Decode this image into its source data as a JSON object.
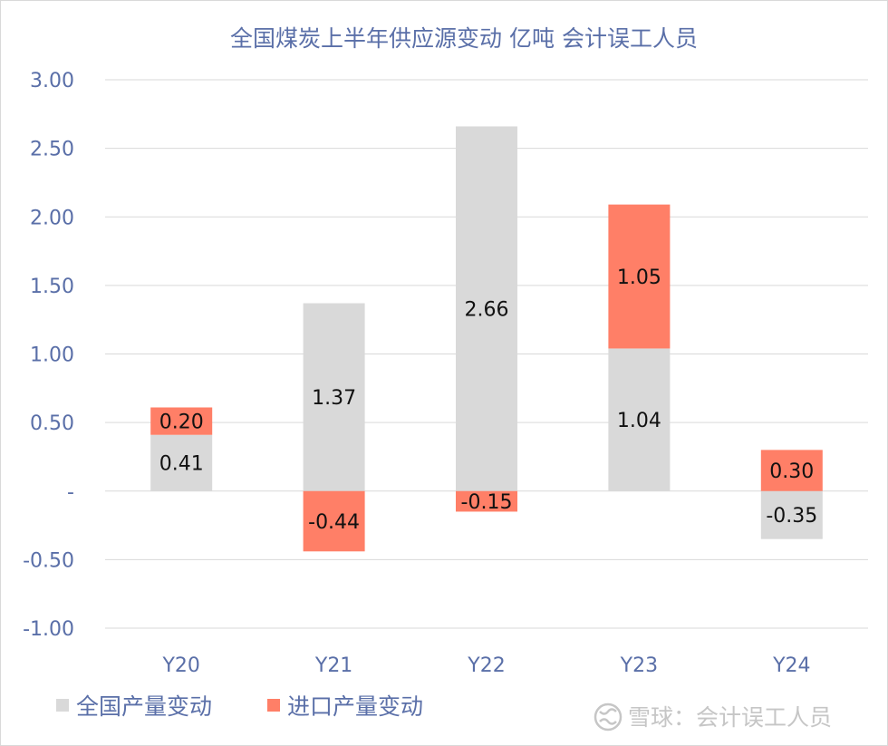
{
  "chart_data": {
    "type": "bar",
    "stacked": true,
    "title": "全国煤炭上半年供应源变动 亿吨 会计误工人员",
    "categories": [
      "Y20",
      "Y21",
      "Y22",
      "Y23",
      "Y24"
    ],
    "series": [
      {
        "name": "全国产量变动",
        "color": "#d9d9d9",
        "values": [
          0.41,
          1.37,
          2.66,
          1.04,
          -0.35
        ],
        "labels": [
          "0.41",
          "1.37",
          "2.66",
          "1.04",
          "-0.35"
        ]
      },
      {
        "name": "进口产量变动",
        "color": "#ff7f67",
        "values": [
          0.2,
          -0.44,
          -0.15,
          1.05,
          0.3
        ],
        "labels": [
          "0.20",
          "-0.44",
          "-0.15",
          "1.05",
          "0.30"
        ]
      }
    ],
    "ylim": [
      -1.0,
      3.0
    ],
    "yticks": [
      {
        "value": 3.0,
        "label": "3.00"
      },
      {
        "value": 2.5,
        "label": "2.50"
      },
      {
        "value": 2.0,
        "label": "2.00"
      },
      {
        "value": 1.5,
        "label": "1.50"
      },
      {
        "value": 1.0,
        "label": "1.00"
      },
      {
        "value": 0.5,
        "label": "0.50"
      },
      {
        "value": 0.0,
        "label": "-"
      },
      {
        "value": -0.5,
        "label": "-0.50"
      },
      {
        "value": -1.0,
        "label": "-1.00"
      }
    ],
    "grid": true,
    "legend": "bottom-left",
    "xlabel": "",
    "ylabel": ""
  },
  "watermark": {
    "icon": "snowball-logo-icon",
    "text": "雪球：会计误工人员"
  },
  "colors": {
    "axis_text": "#5a6fa8",
    "grid": "#d9d9d9",
    "border": "#d9d9d9"
  }
}
